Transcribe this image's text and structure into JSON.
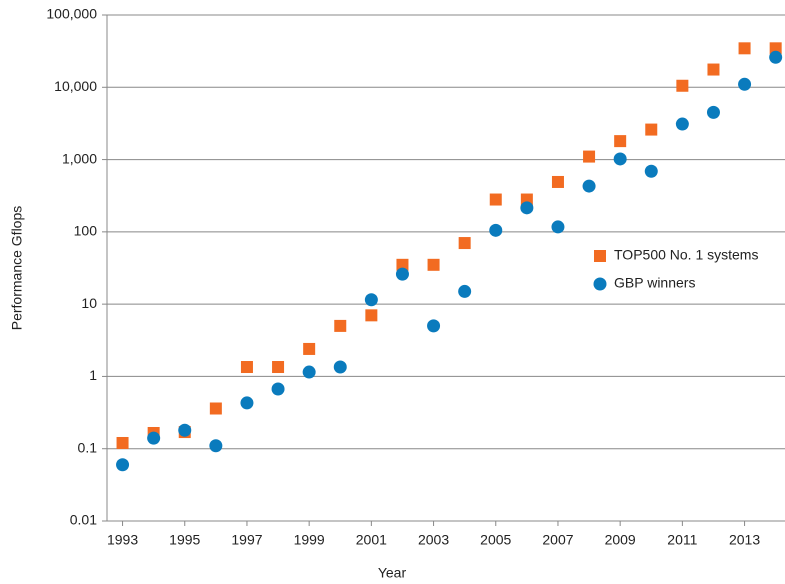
{
  "chart_data": {
    "type": "scatter",
    "x_label": "Year",
    "y_label": "Performance Gflops",
    "log_y": true,
    "grid": true,
    "legend": "right",
    "xlim": [
      1992.5,
      2014.3
    ],
    "xticks": [
      1993,
      1995,
      1997,
      1999,
      2001,
      2003,
      2005,
      2007,
      2009,
      2011,
      2013
    ],
    "ylim": [
      0.01,
      100000
    ],
    "yticks": [
      0.01,
      0.1,
      1,
      10,
      100,
      {
        "value": 1000,
        "label": "1,000"
      },
      {
        "value": 10000,
        "label": "10,000"
      },
      {
        "value": 100000,
        "label": "100,000"
      }
    ],
    "x": [
      1993,
      1994,
      1995,
      1996,
      1997,
      1998,
      1999,
      2000,
      2001,
      2002,
      2003,
      2004,
      2005,
      2006,
      2007,
      2008,
      2009,
      2010,
      2011,
      2012,
      2013,
      2014
    ],
    "series": [
      {
        "name": "TOP500 No. 1 systems",
        "color": "#f26b21",
        "marker": "square",
        "values": [
          0.12,
          0.165,
          0.17,
          0.36,
          1.35,
          1.35,
          2.4,
          5,
          7,
          35,
          35,
          70,
          280,
          280,
          490,
          1100,
          1800,
          2600,
          10500,
          17600,
          34600,
          34600
        ]
      },
      {
        "name": "GBP winners",
        "color": "#0a7bbd",
        "marker": "circle",
        "values": [
          0.06,
          0.14,
          0.18,
          0.11,
          0.43,
          0.67,
          1.15,
          1.35,
          11.5,
          26,
          5,
          15,
          105,
          215,
          117,
          430,
          1020,
          690,
          3100,
          4500,
          11000,
          26000
        ]
      }
    ]
  }
}
